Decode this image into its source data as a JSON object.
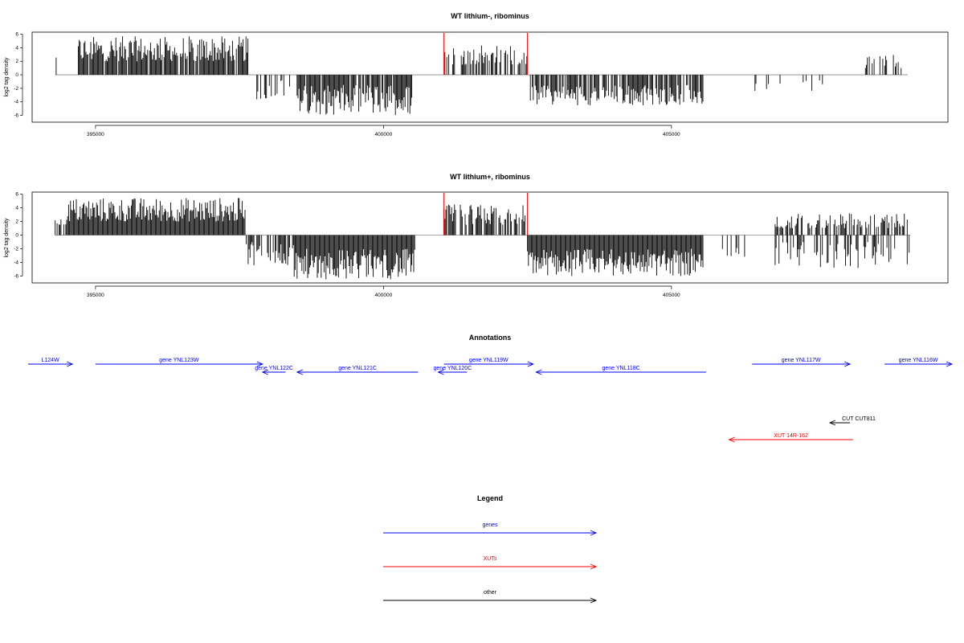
{
  "colors": {
    "gene": "#0000ff",
    "xut": "#ff0000",
    "other": "#000000",
    "axis": "#000000",
    "baseline": "#888888"
  },
  "chart_data": [
    {
      "type": "bar",
      "title": "WT lithium-, ribominus",
      "ylabel": "log2 tag density",
      "xlim": [
        393900,
        409800
      ],
      "ylim": [
        -7,
        6.3
      ],
      "xticks": [
        395000,
        400000,
        405000
      ],
      "xtick_labels": [
        "395000",
        "400000",
        "405000"
      ],
      "yticks": [
        6,
        4,
        2,
        0,
        -2,
        -4,
        -6
      ],
      "ytick_labels": [
        "6",
        "4",
        "2",
        "0",
        "-2",
        "-4",
        "-6"
      ],
      "marker_positions": [
        401050,
        402500
      ],
      "segments": [
        {
          "x0": 394300,
          "x1": 394350,
          "lo": 2.0,
          "hi": 3.0,
          "density": 0.5
        },
        {
          "x0": 394700,
          "x1": 397650,
          "lo": 2.0,
          "hi": 5.7,
          "density": 0.9
        },
        {
          "x0": 397700,
          "x1": 398400,
          "lo": -3.8,
          "hi": -0.6,
          "density": 0.3
        },
        {
          "x0": 398500,
          "x1": 400500,
          "lo": -6.0,
          "hi": -1.5,
          "density": 0.9
        },
        {
          "x0": 401050,
          "x1": 402500,
          "lo": 1.5,
          "hi": 4.5,
          "density": 0.5
        },
        {
          "x0": 402550,
          "x1": 405550,
          "lo": -4.5,
          "hi": -1.5,
          "density": 0.8
        },
        {
          "x0": 406400,
          "x1": 408000,
          "lo": -2.5,
          "hi": -0.8,
          "density": 0.15
        },
        {
          "x0": 408300,
          "x1": 409100,
          "lo": 1.0,
          "hi": 3.5,
          "density": 0.3
        }
      ]
    },
    {
      "type": "bar",
      "title": "WT lithium+, ribominus",
      "ylabel": "log2 tag density",
      "xlim": [
        393900,
        409800
      ],
      "ylim": [
        -7,
        6.3
      ],
      "xticks": [
        395000,
        400000,
        405000
      ],
      "xtick_labels": [
        "395000",
        "400000",
        "405000"
      ],
      "yticks": [
        6,
        4,
        2,
        0,
        -2,
        -4,
        -6
      ],
      "ytick_labels": [
        "6",
        "4",
        "2",
        "0",
        "-2",
        "-4",
        "-6"
      ],
      "marker_positions": [
        401050,
        402500
      ],
      "segments": [
        {
          "x0": 394300,
          "x1": 394500,
          "lo": 1.5,
          "hi": 2.5,
          "density": 0.4
        },
        {
          "x0": 394500,
          "x1": 397600,
          "lo": 2.0,
          "hi": 5.5,
          "density": 1.0
        },
        {
          "x0": 397600,
          "x1": 398450,
          "lo": -4.5,
          "hi": -1.0,
          "density": 0.6
        },
        {
          "x0": 398450,
          "x1": 400550,
          "lo": -6.5,
          "hi": -2.0,
          "density": 1.0
        },
        {
          "x0": 401050,
          "x1": 402500,
          "lo": 1.5,
          "hi": 4.5,
          "density": 0.7
        },
        {
          "x0": 402500,
          "x1": 405550,
          "lo": -6.0,
          "hi": -2.0,
          "density": 1.0
        },
        {
          "x0": 405600,
          "x1": 406300,
          "lo": -3.5,
          "hi": -0.8,
          "density": 0.2
        },
        {
          "x0": 406800,
          "x1": 409150,
          "lo": 1.0,
          "hi": 3.2,
          "density": 0.6
        },
        {
          "x0": 406800,
          "x1": 409150,
          "lo": -5.0,
          "hi": -1.0,
          "density": 0.35
        }
      ]
    }
  ],
  "annotations": {
    "title": "Annotations",
    "xlim": [
      393900,
      409800
    ],
    "items": [
      {
        "label": "L124W",
        "start": 393400,
        "end": 394600,
        "strand": "+",
        "row": 0,
        "kind": "gene"
      },
      {
        "label": "gene YNL123W",
        "start": 395000,
        "end": 397900,
        "strand": "+",
        "row": 0,
        "kind": "gene"
      },
      {
        "label": "gene YNL122C",
        "start": 397900,
        "end": 398300,
        "strand": "-",
        "row": 1,
        "kind": "gene"
      },
      {
        "label": "gene YNL121C",
        "start": 398500,
        "end": 400600,
        "strand": "-",
        "row": 1,
        "kind": "gene"
      },
      {
        "label": "gene YNL119W",
        "start": 401050,
        "end": 402600,
        "strand": "+",
        "row": 0,
        "kind": "gene"
      },
      {
        "label": "gene YNL120C",
        "start": 400950,
        "end": 401450,
        "strand": "-",
        "row": 1,
        "kind": "gene"
      },
      {
        "label": "gene YNL118C",
        "start": 402650,
        "end": 405600,
        "strand": "-",
        "row": 1,
        "kind": "gene"
      },
      {
        "label": "gene YNL117W",
        "start": 406400,
        "end": 408100,
        "strand": "+",
        "row": 0,
        "kind": "gene"
      },
      {
        "label": "gene YNL116W",
        "start": 408700,
        "end": 410000,
        "strand": "+",
        "row": 0,
        "kind": "gene"
      },
      {
        "label": "CUT CUT811",
        "start": 407750,
        "end": 408100,
        "strand": "-",
        "row": 3,
        "kind": "other"
      },
      {
        "label": "XUT 14R-162",
        "start": 406000,
        "end": 408150,
        "strand": "-",
        "row": 4,
        "kind": "xut"
      }
    ]
  },
  "legend": {
    "title": "Legend",
    "items": [
      {
        "label": "genes",
        "kind": "gene"
      },
      {
        "label": "XUTs",
        "kind": "xut"
      },
      {
        "label": "other",
        "kind": "other"
      }
    ]
  }
}
